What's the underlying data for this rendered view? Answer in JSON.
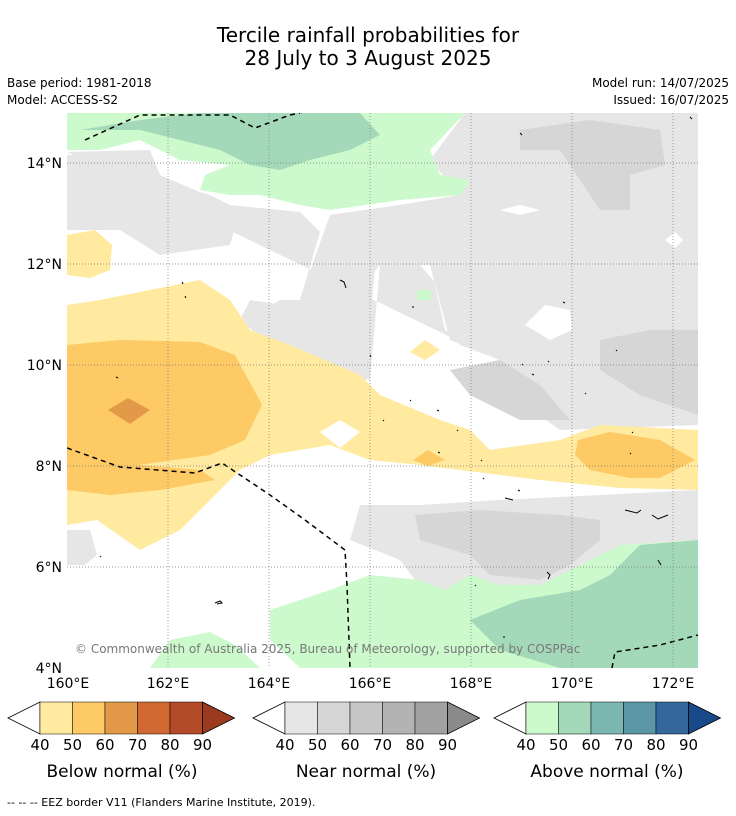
{
  "title": {
    "line1": "Tercile rainfall probabilities for",
    "line2": "28 July to 3 August 2025"
  },
  "meta": {
    "base_period": "Base period: 1981-2018",
    "model": "Model: ACCESS-S2",
    "model_run": "Model run: 14/07/2025",
    "issued": "Issued: 16/07/2025"
  },
  "map": {
    "x_ticks": [
      "160°E",
      "162°E",
      "164°E",
      "166°E",
      "168°E",
      "170°E",
      "172°E"
    ],
    "y_ticks": [
      "14°N",
      "12°N",
      "10°N",
      "8°N",
      "6°N",
      "4°N"
    ],
    "copyright": "© Commonwealth of Australia 2025, Bureau of Meteorology, supported by COSPPac"
  },
  "legends": [
    {
      "label": "Below normal (%)",
      "ticks": [
        "40",
        "50",
        "60",
        "70",
        "80",
        "90"
      ],
      "low_color": "#ffffff",
      "colors": [
        "#ffeaa0",
        "#fdca66",
        "#e39a48",
        "#d06832",
        "#b34a28"
      ],
      "high_color": "#9b3a1f"
    },
    {
      "label": "Near normal (%)",
      "ticks": [
        "40",
        "50",
        "60",
        "70",
        "80",
        "90"
      ],
      "low_color": "#ffffff",
      "colors": [
        "#e6e6e6",
        "#d6d6d6",
        "#c6c6c6",
        "#b3b3b3",
        "#a1a1a1"
      ],
      "high_color": "#8a8a8a"
    },
    {
      "label": "Above normal (%)",
      "ticks": [
        "40",
        "50",
        "60",
        "70",
        "80",
        "90"
      ],
      "low_color": "#ffffff",
      "colors": [
        "#cdfacd",
        "#a3d9b9",
        "#7ab7b1",
        "#5b97a4",
        "#34689d"
      ],
      "high_color": "#184a8a"
    }
  ],
  "footnote": "--  --  -- EEZ border V11 (Flanders Marine Institute, 2019)."
}
